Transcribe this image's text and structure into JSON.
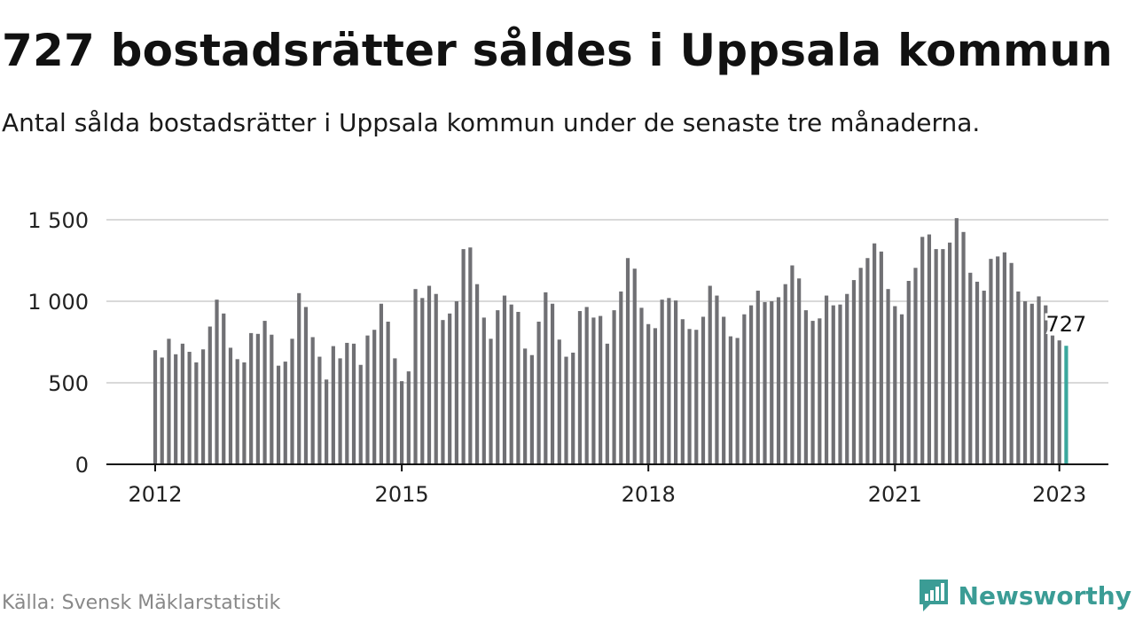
{
  "title": "727 bostadsrätter såldes i Uppsala kommun",
  "subtitle": "Antal sålda bostadsrätter i Uppsala kommun under de senaste tre månaderna.",
  "source": "Källa: Svensk Mäklarstatistik",
  "brand": {
    "name": "Newsworthy",
    "icon": "newsworthy-logo-icon"
  },
  "colors": {
    "bar": "#707074",
    "highlight": "#3aa79d",
    "grid": "#d9d9d9",
    "axis": "#111111",
    "brand": "#3b9c95"
  },
  "chart_data": {
    "type": "bar",
    "x_start": "2012-01",
    "x_ticks": [
      "2012",
      "2015",
      "2018",
      "2021",
      "2023"
    ],
    "y_ticks": [
      "0",
      "500",
      "1 000",
      "1 500"
    ],
    "ylim": [
      0,
      1500
    ],
    "grid": true,
    "highlight_label": "727",
    "values": [
      700,
      655,
      770,
      675,
      740,
      690,
      625,
      705,
      845,
      1010,
      925,
      715,
      645,
      625,
      805,
      800,
      880,
      795,
      605,
      630,
      770,
      1050,
      965,
      780,
      660,
      520,
      725,
      650,
      745,
      740,
      610,
      790,
      825,
      985,
      875,
      650,
      510,
      570,
      1075,
      1020,
      1095,
      1045,
      885,
      925,
      1000,
      1320,
      1330,
      1105,
      900,
      770,
      945,
      1035,
      980,
      935,
      710,
      670,
      875,
      1055,
      985,
      765,
      660,
      685,
      940,
      965,
      900,
      910,
      740,
      945,
      1060,
      1265,
      1200,
      960,
      860,
      835,
      1010,
      1020,
      1005,
      890,
      830,
      825,
      905,
      1095,
      1035,
      905,
      785,
      775,
      920,
      975,
      1065,
      995,
      1000,
      1025,
      1105,
      1220,
      1140,
      945,
      880,
      895,
      1035,
      975,
      980,
      1045,
      1130,
      1205,
      1265,
      1355,
      1305,
      1075,
      970,
      920,
      1125,
      1205,
      1395,
      1410,
      1320,
      1320,
      1360,
      1510,
      1425,
      1175,
      1120,
      1065,
      1260,
      1275,
      1300,
      1235,
      1060,
      1000,
      985,
      1030,
      975,
      790,
      760,
      727
    ]
  }
}
